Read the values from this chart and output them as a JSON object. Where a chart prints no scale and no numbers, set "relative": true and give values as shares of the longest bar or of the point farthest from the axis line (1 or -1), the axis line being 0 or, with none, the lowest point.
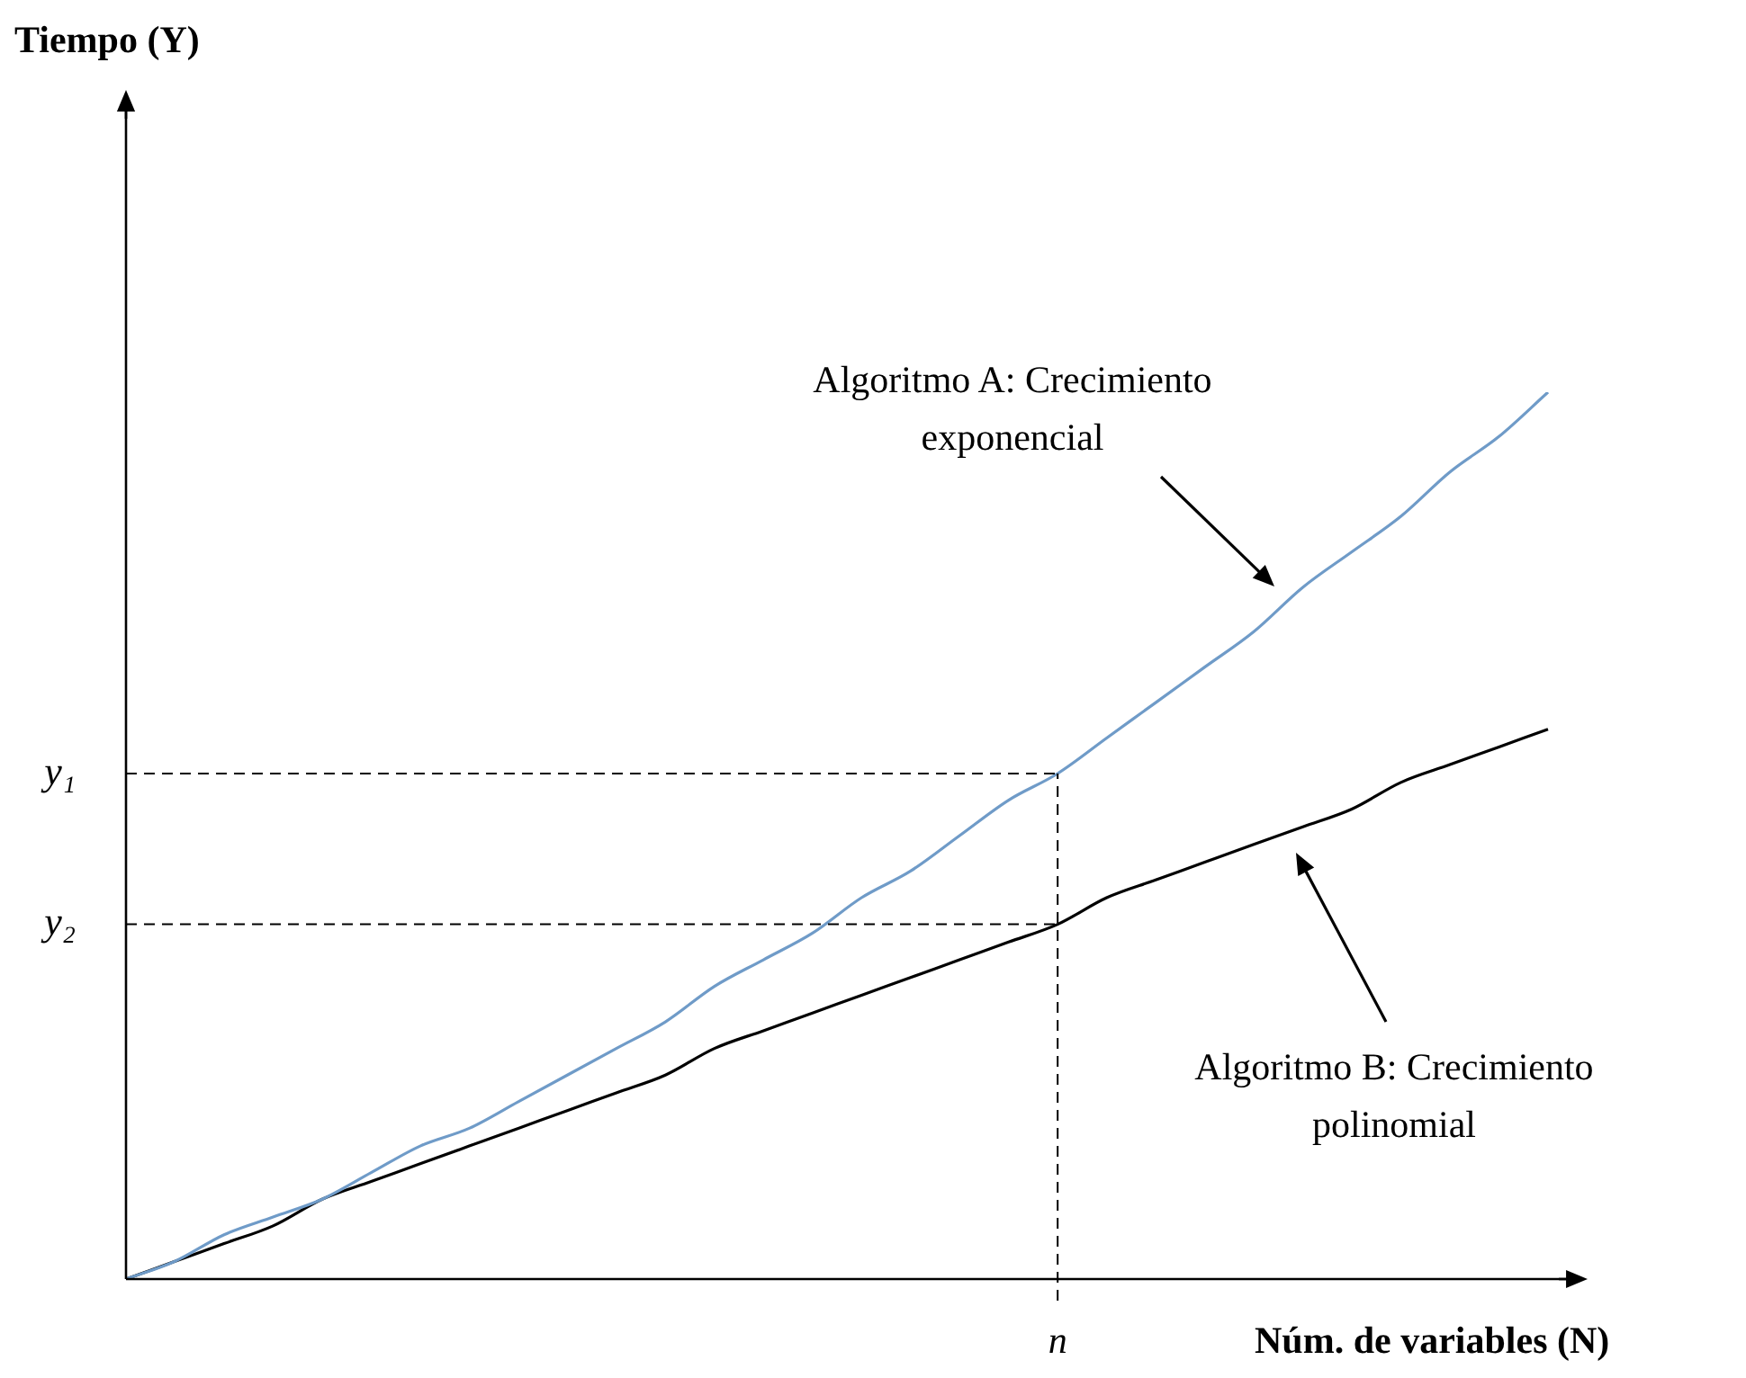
{
  "chart_data": {
    "type": "line",
    "relative": true,
    "xlabel": "Núm. de variables (N)",
    "categories": [
      null,
      null,
      null,
      null,
      null,
      null,
      null,
      null,
      null,
      null,
      null,
      null,
      null,
      null,
      null,
      null,
      null,
      null,
      null,
      null,
      null,
      null,
      null,
      null,
      null,
      null,
      null,
      null,
      null,
      null
    ],
    "series": [
      {
        "color": "#6f9bc8",
        "values": [
          0,
          0.02,
          0.05,
          0.07,
          0.09,
          0.12,
          0.15,
          0.17,
          0.2,
          0.23,
          0.26,
          0.29,
          0.33,
          0.36,
          0.39,
          0.43,
          0.46,
          0.5,
          0.54,
          0.57,
          0.61,
          0.65,
          0.69,
          0.73,
          0.78,
          0.82,
          0.86,
          0.91,
          0.95,
          1
        ]
      },
      {
        "color": "#000000",
        "values": [
          0,
          0.02,
          0.04,
          0.06,
          0.09,
          0.11,
          0.13,
          0.15,
          0.17,
          0.19,
          0.21,
          0.23,
          0.26,
          0.28,
          0.3,
          0.32,
          0.34,
          0.36,
          0.38,
          0.4,
          0.43,
          0.45,
          0.47,
          0.49,
          0.51,
          0.53,
          0.56,
          0.58,
          0.6,
          0.62
        ]
      }
    ],
    "ref_lines": [
      {
        "axis": "y",
        "value": 0.57,
        "label": "y₁",
        "line_style": "dashed"
      },
      {
        "axis": "y",
        "value": 0.4,
        "label": "y₂",
        "line_style": "dashed"
      }
    ],
    "annotations": [
      "Algoritmo A: Crecimiento exponencial",
      "Algoritmo B: Crecimiento polinomial",
      "n",
      "Tiempo (Y)"
    ],
    "legend": false,
    "marker": "none",
    "line_style": "solid"
  }
}
